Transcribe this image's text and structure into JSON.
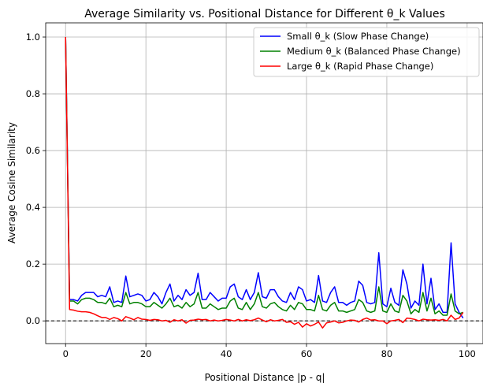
{
  "chart_data": {
    "type": "line",
    "title": "Average Similarity vs. Positional Distance for Different θ_k Values",
    "xlabel": "Positional Distance |p - q|",
    "ylabel": "Average Cosine Similarity",
    "xlim": [
      -4.95,
      103.95
    ],
    "ylim": [
      -0.08,
      1.05
    ],
    "xticks": [
      "0",
      "20",
      "40",
      "60",
      "80",
      "100"
    ],
    "xtick_values": [
      0,
      20,
      40,
      60,
      80,
      100
    ],
    "yticks": [
      "0.0",
      "0.2",
      "0.4",
      "0.6",
      "0.8",
      "1.0"
    ],
    "ytick_values": [
      0.0,
      0.2,
      0.4,
      0.6,
      0.8,
      1.0
    ],
    "grid": true,
    "legend_position": "top-right",
    "reference_line": {
      "y": 0.0,
      "style": "dashed",
      "color": "#000000"
    },
    "x": [
      0,
      1,
      2,
      3,
      4,
      5,
      6,
      7,
      8,
      9,
      10,
      11,
      12,
      13,
      14,
      15,
      16,
      17,
      18,
      19,
      20,
      21,
      22,
      23,
      24,
      25,
      26,
      27,
      28,
      29,
      30,
      31,
      32,
      33,
      34,
      35,
      36,
      37,
      38,
      39,
      40,
      41,
      42,
      43,
      44,
      45,
      46,
      47,
      48,
      49,
      50,
      51,
      52,
      53,
      54,
      55,
      56,
      57,
      58,
      59,
      60,
      61,
      62,
      63,
      64,
      65,
      66,
      67,
      68,
      69,
      70,
      71,
      72,
      73,
      74,
      75,
      76,
      77,
      78,
      79,
      80,
      81,
      82,
      83,
      84,
      85,
      86,
      87,
      88,
      89,
      90,
      91,
      92,
      93,
      94,
      95,
      96,
      97,
      98,
      99
    ],
    "series": [
      {
        "name": "Small θ_k (Slow Phase Change)",
        "color": "#0000ff",
        "values": [
          1.0,
          0.075,
          0.075,
          0.07,
          0.09,
          0.1,
          0.1,
          0.1,
          0.085,
          0.09,
          0.085,
          0.12,
          0.065,
          0.07,
          0.065,
          0.158,
          0.085,
          0.09,
          0.095,
          0.09,
          0.07,
          0.075,
          0.1,
          0.085,
          0.06,
          0.1,
          0.13,
          0.07,
          0.09,
          0.075,
          0.11,
          0.09,
          0.1,
          0.168,
          0.075,
          0.075,
          0.1,
          0.085,
          0.07,
          0.08,
          0.08,
          0.12,
          0.13,
          0.085,
          0.075,
          0.11,
          0.075,
          0.1,
          0.17,
          0.085,
          0.08,
          0.11,
          0.11,
          0.085,
          0.07,
          0.065,
          0.1,
          0.075,
          0.12,
          0.11,
          0.07,
          0.075,
          0.065,
          0.16,
          0.07,
          0.065,
          0.1,
          0.12,
          0.065,
          0.065,
          0.055,
          0.065,
          0.07,
          0.14,
          0.125,
          0.065,
          0.06,
          0.065,
          0.24,
          0.06,
          0.05,
          0.115,
          0.065,
          0.055,
          0.18,
          0.13,
          0.045,
          0.07,
          0.055,
          0.2,
          0.06,
          0.15,
          0.04,
          0.06,
          0.03,
          0.03,
          0.275,
          0.06,
          0.03,
          0.01
        ]
      },
      {
        "name": "Medium θ_k (Balanced Phase Change)",
        "color": "#008000",
        "values": [
          1.0,
          0.07,
          0.07,
          0.06,
          0.075,
          0.08,
          0.08,
          0.075,
          0.065,
          0.065,
          0.06,
          0.08,
          0.05,
          0.055,
          0.05,
          0.1,
          0.06,
          0.065,
          0.065,
          0.06,
          0.05,
          0.05,
          0.065,
          0.055,
          0.045,
          0.06,
          0.08,
          0.05,
          0.055,
          0.045,
          0.065,
          0.05,
          0.06,
          0.1,
          0.045,
          0.045,
          0.06,
          0.05,
          0.04,
          0.045,
          0.045,
          0.07,
          0.08,
          0.045,
          0.04,
          0.065,
          0.04,
          0.06,
          0.1,
          0.05,
          0.045,
          0.06,
          0.065,
          0.05,
          0.04,
          0.035,
          0.055,
          0.04,
          0.065,
          0.06,
          0.04,
          0.04,
          0.035,
          0.09,
          0.04,
          0.035,
          0.055,
          0.065,
          0.035,
          0.035,
          0.03,
          0.035,
          0.04,
          0.075,
          0.065,
          0.035,
          0.03,
          0.035,
          0.12,
          0.035,
          0.03,
          0.06,
          0.035,
          0.03,
          0.09,
          0.07,
          0.025,
          0.04,
          0.03,
          0.1,
          0.035,
          0.08,
          0.025,
          0.035,
          0.02,
          0.02,
          0.095,
          0.035,
          0.025,
          0.03
        ]
      },
      {
        "name": "Large θ_k (Rapid Phase Change)",
        "color": "#ff0000",
        "values": [
          1.0,
          0.04,
          0.038,
          0.034,
          0.032,
          0.032,
          0.03,
          0.025,
          0.018,
          0.012,
          0.012,
          0.005,
          0.012,
          0.008,
          0.0,
          0.015,
          0.01,
          0.004,
          0.012,
          0.006,
          0.005,
          0.002,
          0.005,
          0.004,
          0.0,
          0.002,
          -0.005,
          0.004,
          0.0,
          0.004,
          -0.008,
          0.002,
          0.003,
          0.006,
          0.004,
          0.005,
          0.0,
          0.003,
          0.0,
          0.002,
          0.005,
          0.003,
          0.0,
          0.005,
          0.0,
          0.004,
          0.001,
          0.004,
          0.01,
          0.003,
          -0.003,
          0.004,
          0.0,
          0.002,
          0.005,
          -0.005,
          -0.003,
          -0.012,
          -0.005,
          -0.022,
          -0.01,
          -0.018,
          -0.012,
          -0.004,
          -0.025,
          -0.007,
          -0.004,
          0.0,
          -0.007,
          -0.005,
          0.0,
          0.003,
          0.002,
          -0.004,
          0.005,
          0.01,
          0.003,
          0.004,
          0.0,
          0.0,
          -0.01,
          0.0,
          0.002,
          0.005,
          -0.006,
          0.01,
          0.008,
          0.005,
          0.0,
          0.006,
          0.004,
          0.003,
          0.004,
          0.002,
          0.005,
          0.0,
          0.02,
          0.005,
          0.01,
          0.03
        ]
      }
    ]
  }
}
